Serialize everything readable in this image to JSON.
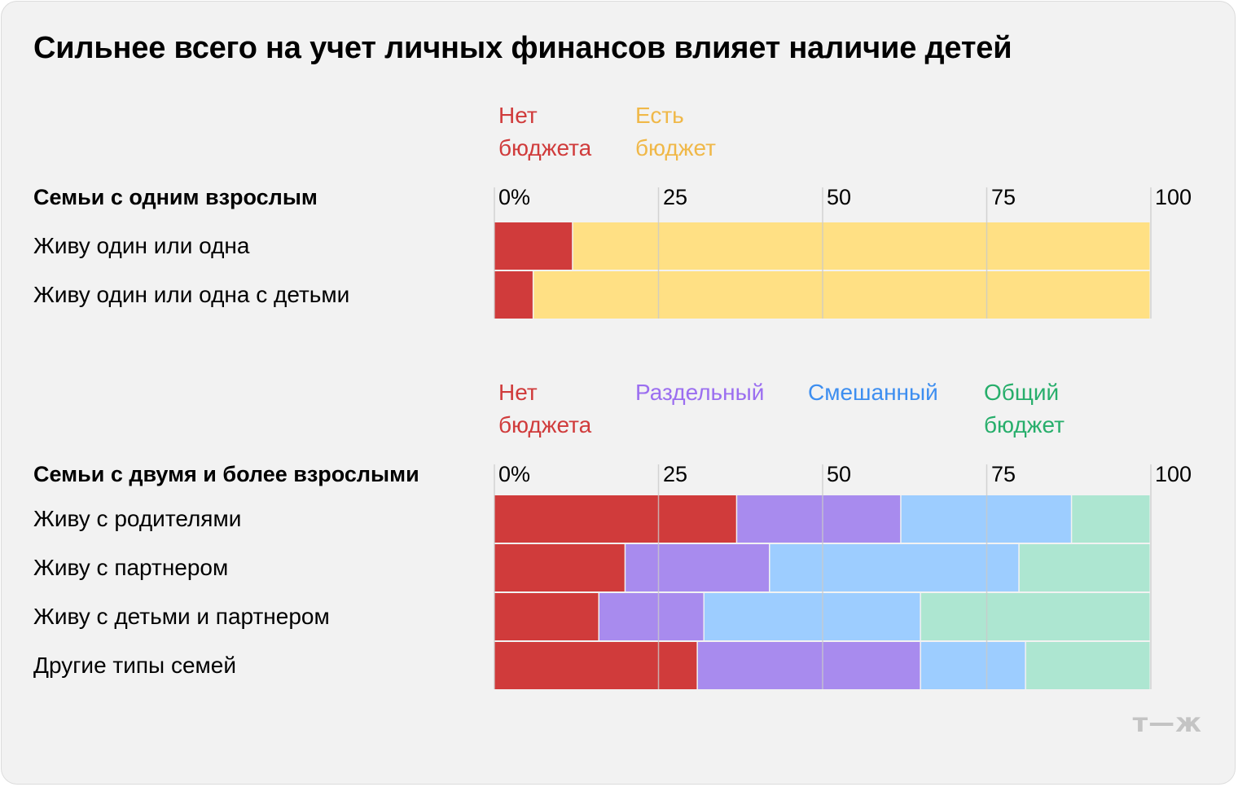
{
  "title": "Сильнее всего на учет личных финансов влияет наличие детей",
  "logo": "т—ж",
  "colors": {
    "no_budget": "#d03b3b",
    "has_budget": "#ffe084",
    "separate": "#a88bee",
    "mixed": "#9dcdff",
    "joint": "#ade6d1",
    "no_budget_text": "#d03b3b",
    "has_budget_text": "#f0b848",
    "separate_text": "#9b6ef0",
    "mixed_text": "#3d8ef0",
    "joint_text": "#27ae6b",
    "gridline": "#c9c9c9"
  },
  "chart_data": [
    {
      "type": "bar",
      "stacked": true,
      "orientation": "horizontal",
      "group_title": "Семьи с одним взрослым",
      "xlim": [
        0,
        100
      ],
      "ticks": [
        "0%",
        "25",
        "50",
        "75",
        "100"
      ],
      "categories": [
        "Живу один или одна",
        "Живу один или одна с детьми"
      ],
      "series": [
        {
          "name": "Нет\nбюджета",
          "color_key": "no_budget",
          "text_color_key": "no_budget_text",
          "values": [
            12,
            6
          ]
        },
        {
          "name": "Есть\nбюджет",
          "color_key": "has_budget",
          "text_color_key": "has_budget_text",
          "values": [
            88,
            94
          ]
        }
      ]
    },
    {
      "type": "bar",
      "stacked": true,
      "orientation": "horizontal",
      "group_title": "Семьи с двумя и более взрослыми",
      "xlim": [
        0,
        100
      ],
      "ticks": [
        "0%",
        "25",
        "50",
        "75",
        "100"
      ],
      "categories": [
        "Живу с родителями",
        "Живу с партнером",
        "Живу с детьми и партнером",
        "Другие типы семей"
      ],
      "series": [
        {
          "name": "Нет\nбюджета",
          "color_key": "no_budget",
          "text_color_key": "no_budget_text",
          "values": [
            37,
            20,
            16,
            31
          ]
        },
        {
          "name": "Раздельный",
          "color_key": "separate",
          "text_color_key": "separate_text",
          "values": [
            25,
            22,
            16,
            34
          ]
        },
        {
          "name": "Смешанный",
          "color_key": "mixed",
          "text_color_key": "mixed_text",
          "values": [
            26,
            38,
            33,
            16
          ]
        },
        {
          "name": "Общий\nбюджет",
          "color_key": "joint",
          "text_color_key": "joint_text",
          "values": [
            12,
            20,
            35,
            19
          ]
        }
      ]
    }
  ]
}
